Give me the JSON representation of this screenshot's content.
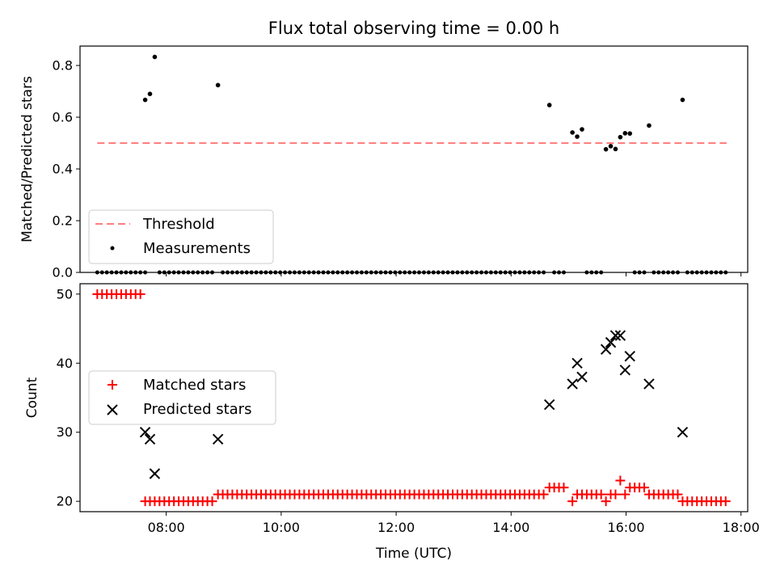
{
  "chart_data": [
    {
      "type": "scatter",
      "title": "Flux total observing time = 0.00 h",
      "xlabel": "",
      "ylabel": "Matched/Predicted stars",
      "xlim": [
        "06:30",
        "18:07"
      ],
      "ylim": [
        0,
        0.875
      ],
      "yticks": [
        "0.0",
        "0.2",
        "0.4",
        "0.6",
        "0.8"
      ],
      "legend_position": "lower-left",
      "series": [
        {
          "name": "Threshold",
          "kind": "dashed-line",
          "color": "#ff7f7f",
          "x": [
            "06:48",
            "17:45"
          ],
          "y": [
            0.5,
            0.5
          ]
        },
        {
          "name": "Measurements",
          "kind": "points",
          "color": "#000000",
          "points": [
            [
              "07:38",
              0.667
            ],
            [
              "07:43",
              0.69
            ],
            [
              "07:48",
              0.833
            ],
            [
              "08:54",
              0.724
            ],
            [
              "14:40",
              0.647
            ],
            [
              "15:04",
              0.541
            ],
            [
              "15:09",
              0.525
            ],
            [
              "15:14",
              0.553
            ],
            [
              "15:39",
              0.476
            ],
            [
              "15:44",
              0.488
            ],
            [
              "15:49",
              0.477
            ],
            [
              "15:54",
              0.523
            ],
            [
              "15:59",
              0.538
            ],
            [
              "16:04",
              0.537
            ],
            [
              "16:24",
              0.568
            ],
            [
              "16:59",
              0.667
            ]
          ],
          "zero_runs": [
            [
              "06:48",
              "07:38"
            ],
            [
              "07:53",
              "08:49"
            ],
            [
              "08:59",
              "14:35"
            ],
            [
              "14:45",
              "14:59"
            ],
            [
              "15:19",
              "15:34"
            ],
            [
              "16:09",
              "16:19"
            ],
            [
              "16:29",
              "16:54"
            ],
            [
              "17:04",
              "17:45"
            ]
          ],
          "zero_step_minutes": 5
        }
      ]
    },
    {
      "type": "scatter",
      "title": "",
      "xlabel": "Time (UTC)",
      "ylabel": "Count",
      "xlim": [
        "06:30",
        "18:07"
      ],
      "ylim": [
        18.5,
        51.5
      ],
      "yticks": [
        "20",
        "30",
        "40",
        "50"
      ],
      "xticks": [
        "08:00",
        "10:00",
        "12:00",
        "14:00",
        "16:00",
        "18:00"
      ],
      "legend_position": "center-left",
      "series": [
        {
          "name": "Matched stars",
          "marker": "plus",
          "color": "#ff0000",
          "segments": [
            {
              "from": "06:48",
              "to": "07:33",
              "value": 50
            },
            {
              "from": "07:38",
              "to": "08:49",
              "value": 20
            },
            {
              "from": "08:54",
              "to": "14:35",
              "value": 21
            },
            {
              "from": "14:40",
              "to": "14:59",
              "value": 22
            },
            {
              "from": "15:04",
              "to": "15:04",
              "value": 20
            },
            {
              "from": "15:09",
              "to": "15:34",
              "value": 21
            },
            {
              "from": "15:39",
              "to": "15:39",
              "value": 20
            },
            {
              "from": "15:44",
              "to": "15:49",
              "value": 21
            },
            {
              "from": "15:54",
              "to": "15:54",
              "value": 23
            },
            {
              "from": "15:59",
              "to": "15:59",
              "value": 21
            },
            {
              "from": "16:04",
              "to": "16:19",
              "value": 22
            },
            {
              "from": "16:24",
              "to": "16:54",
              "value": 21
            },
            {
              "from": "16:59",
              "to": "17:45",
              "value": 20
            }
          ],
          "step_minutes": 5
        },
        {
          "name": "Predicted stars",
          "marker": "x",
          "color": "#000000",
          "points": [
            [
              "07:38",
              30
            ],
            [
              "07:43",
              29
            ],
            [
              "07:48",
              24
            ],
            [
              "08:54",
              29
            ],
            [
              "14:40",
              34
            ],
            [
              "15:04",
              37
            ],
            [
              "15:09",
              40
            ],
            [
              "15:14",
              38
            ],
            [
              "15:39",
              42
            ],
            [
              "15:44",
              43
            ],
            [
              "15:49",
              44
            ],
            [
              "15:54",
              44
            ],
            [
              "15:59",
              39
            ],
            [
              "16:04",
              41
            ],
            [
              "16:24",
              37
            ],
            [
              "16:59",
              30
            ]
          ]
        }
      ]
    }
  ]
}
